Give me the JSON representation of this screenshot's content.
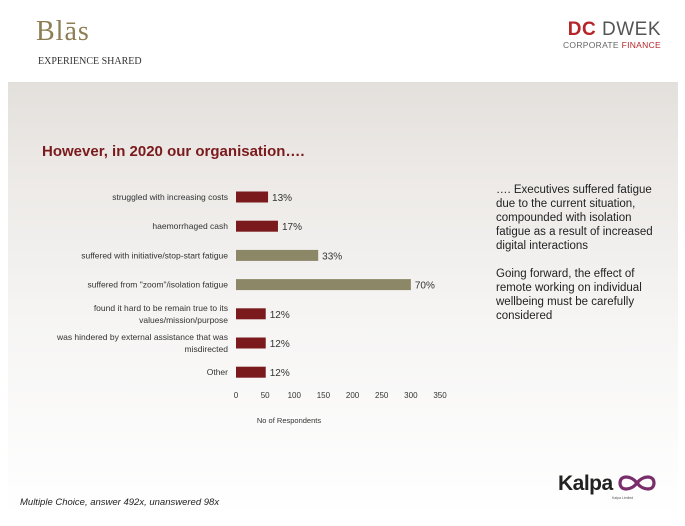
{
  "header": {
    "left_logo": {
      "name": "Blās",
      "tagline": "EXPERIENCE SHARED"
    },
    "right_logo": {
      "dc": "DC",
      "dwek": "DWEK",
      "corporate": "CORPORATE",
      "finance": "FINANCE"
    }
  },
  "slide": {
    "title": "However, in 2020 our organisation….",
    "side_paragraphs": [
      "…. Executives suffered fatigue due to the current situation, compounded with isolation fatigue as a result of increased digital interactions",
      "Going forward, the effect of remote working on individual wellbeing must be carefully considered"
    ],
    "footnote": "Multiple Choice, answer 492x, unanswered 98x",
    "footer_logo": {
      "word": "Kalpa",
      "sub": "Kalpa Limited"
    }
  },
  "colors": {
    "maroon": "#7b1a1c",
    "olive": "#8c8766",
    "brand_red": "#b5252a",
    "blas_gold": "#8c7d52"
  },
  "chart_data": {
    "type": "bar",
    "orientation": "horizontal",
    "title": "",
    "xlabel": "No of Respondents",
    "ylabel": "",
    "xlim": [
      0,
      350
    ],
    "x_ticks": [
      0,
      50,
      100,
      150,
      200,
      250,
      300,
      350
    ],
    "grid": false,
    "categories": [
      [
        "struggled with increasing costs"
      ],
      [
        "haemorrhaged cash"
      ],
      [
        "suffered with initiative/stop-start fatigue"
      ],
      [
        "suffered from \"zoom\"/isolation  fatigue"
      ],
      [
        "found it hard to be remain true to its",
        "values/mission/purpose"
      ],
      [
        "was hindered by external assistance that was",
        "misdirected"
      ],
      [
        "Other"
      ]
    ],
    "values": [
      55,
      72,
      141,
      300,
      51,
      51,
      51
    ],
    "labels": [
      "13%",
      "17%",
      "33%",
      "70%",
      "12%",
      "12%",
      "12%"
    ],
    "bar_colors": [
      "#7b1a1c",
      "#7b1a1c",
      "#8c8766",
      "#8c8766",
      "#7b1a1c",
      "#7b1a1c",
      "#7b1a1c"
    ]
  }
}
